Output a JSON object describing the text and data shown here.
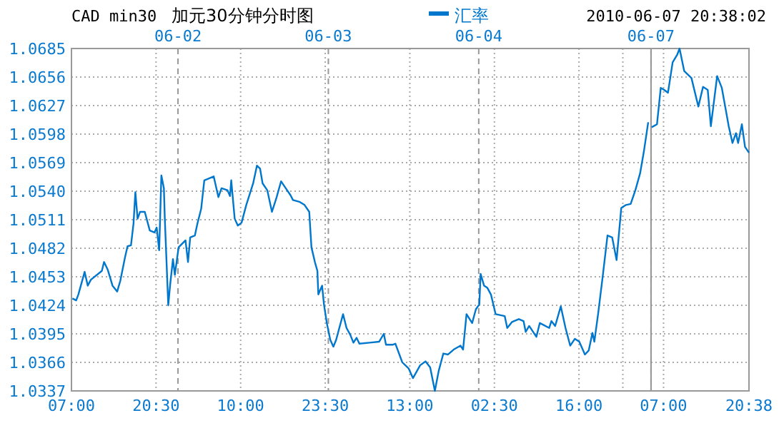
{
  "chart_data": [
    {
      "type": "line",
      "title": "加元30分钟分时图",
      "subtitle": "CAD min30",
      "annotations": [
        "2010-06-07 20:38:02"
      ],
      "legend": "top",
      "grid": true,
      "line_style": "solid",
      "marker": "none",
      "xlim": [
        "2010-06-01T07:00",
        "2010-06-05T03:30"
      ],
      "xticks": [
        {
          "value": "2010-06-01T07:00",
          "label": "07:00"
        },
        {
          "value": "2010-06-01T20:30",
          "label": "20:30"
        },
        {
          "value": "2010-06-02T10:00",
          "label": "10:00"
        },
        {
          "value": "2010-06-02T23:30",
          "label": "23:30"
        },
        {
          "value": "2010-06-03T13:00",
          "label": "13:00"
        },
        {
          "value": "2010-06-04T02:30",
          "label": "02:30"
        },
        {
          "value": "2010-06-04T16:00",
          "label": "16:00"
        },
        {
          "value": "2010-06-04T23:00",
          "label": null
        }
      ],
      "ylim": [
        1.0337,
        1.0685
      ],
      "yticks": [
        1.0337,
        1.0366,
        1.0395,
        1.0424,
        1.0453,
        1.0482,
        1.0511,
        {
          "value": 1.054,
          "label": "1.0540"
        },
        1.0569,
        1.0598,
        1.0627,
        1.0656,
        1.0685
      ],
      "ref_lines": [
        {
          "axis": "x",
          "value": "2010-06-02",
          "label": "06-02",
          "color": "#999999",
          "line_style": "dashed"
        },
        {
          "axis": "x",
          "value": "2010-06-03",
          "label": "06-03",
          "color": "#999999",
          "line_style": "dashed"
        },
        {
          "axis": "x",
          "value": "2010-06-04",
          "label": "06-04",
          "color": "#999999",
          "line_style": "dashed"
        }
      ],
      "series": [
        {
          "name": "汇率",
          "color": "#0077cc",
          "x": [
            "2010-06-01T07:09",
            "2010-06-01T07:45",
            "2010-06-01T08:06",
            "2010-06-01T09:06",
            "2010-06-01T09:36",
            "2010-06-01T10:06",
            "2010-06-01T11:51",
            "2010-06-01T12:12",
            "2010-06-01T12:48",
            "2010-06-01T13:33",
            "2010-06-01T14:18",
            "2010-06-01T14:48",
            "2010-06-01T15:33",
            "2010-06-01T15:57",
            "2010-06-01T16:30",
            "2010-06-01T16:54",
            "2010-06-01T17:12",
            "2010-06-01T17:33",
            "2010-06-01T17:57",
            "2010-06-01T18:42",
            "2010-06-01T19:30",
            "2010-06-01T20:15",
            "2010-06-01T20:36",
            "2010-06-01T21:00",
            "2010-06-01T21:21",
            "2010-06-01T21:45",
            "2010-06-01T21:54",
            "2010-06-01T22:27",
            "2010-06-01T22:45",
            "2010-06-01T23:12",
            "2010-06-01T23:30",
            "2010-06-02T00:06",
            "2010-06-02T01:12",
            "2010-06-02T01:36",
            "2010-06-02T01:57",
            "2010-06-02T02:42",
            "2010-06-02T03:06",
            "2010-06-02T03:42",
            "2010-06-02T04:12",
            "2010-06-02T05:42",
            "2010-06-02T06:27",
            "2010-06-02T06:57",
            "2010-06-02T07:54",
            "2010-06-02T08:18",
            "2010-06-02T08:30",
            "2010-06-02T09:03",
            "2010-06-02T09:33",
            "2010-06-02T10:09",
            "2010-06-02T10:54",
            "2010-06-02T12:00",
            "2010-06-02T12:36",
            "2010-06-02T13:06",
            "2010-06-02T13:30",
            "2010-06-02T14:15",
            "2010-06-02T15:00",
            "2010-06-02T15:45",
            "2010-06-02T16:27",
            "2010-06-02T17:12",
            "2010-06-02T17:57",
            "2010-06-02T18:21",
            "2010-06-02T19:27",
            "2010-06-02T20:12",
            "2010-06-02T20:57",
            "2010-06-02T21:18",
            "2010-06-02T21:51",
            "2010-06-02T22:15",
            "2010-06-02T22:24",
            "2010-06-02T23:00",
            "2010-06-02T23:18",
            "2010-06-02T23:45",
            "2010-06-03T00:18",
            "2010-06-03T00:48",
            "2010-06-03T01:15",
            "2010-06-03T01:45",
            "2010-06-03T02:21",
            "2010-06-03T02:54",
            "2010-06-03T03:30",
            "2010-06-03T04:00",
            "2010-06-03T04:30",
            "2010-06-03T04:57",
            "2010-06-03T06:36",
            "2010-06-03T08:06",
            "2010-06-03T08:51",
            "2010-06-03T09:12",
            "2010-06-03T10:18",
            "2010-06-03T10:42",
            "2010-06-03T11:48",
            "2010-06-03T12:48",
            "2010-06-03T13:30",
            "2010-06-03T14:39",
            "2010-06-03T15:30",
            "2010-06-03T16:15",
            "2010-06-03T17:00",
            "2010-06-03T17:36",
            "2010-06-03T18:21",
            "2010-06-03T19:06",
            "2010-06-03T20:00",
            "2010-06-03T21:06",
            "2010-06-03T21:30",
            "2010-06-03T22:03",
            "2010-06-03T22:57",
            "2010-06-03T23:33",
            "2010-06-04T00:06",
            "2010-06-04T00:18",
            "2010-06-04T00:51",
            "2010-06-04T01:21",
            "2010-06-04T01:57",
            "2010-06-04T02:42",
            "2010-06-04T04:09",
            "2010-06-04T04:33",
            "2010-06-04T05:18",
            "2010-06-04T06:24",
            "2010-06-04T07:09",
            "2010-06-04T07:30",
            "2010-06-04T08:03",
            "2010-06-04T09:12",
            "2010-06-04T09:45",
            "2010-06-04T11:15",
            "2010-06-04T11:36",
            "2010-06-04T12:12",
            "2010-06-04T13:06",
            "2010-06-04T13:51",
            "2010-06-04T14:36",
            "2010-06-04T15:21",
            "2010-06-04T16:03",
            "2010-06-04T16:57",
            "2010-06-04T17:33",
            "2010-06-04T18:09",
            "2010-06-04T18:27",
            "2010-06-04T19:03",
            "2010-06-04T19:48",
            "2010-06-04T20:33",
            "2010-06-04T21:18",
            "2010-06-04T22:00",
            "2010-06-04T22:45",
            "2010-06-04T23:30",
            "2010-06-05T00:15",
            "2010-06-05T01:00",
            "2010-06-05T01:45",
            "2010-06-05T02:21",
            "2010-06-05T03:03"
          ],
          "values": [
            1.0431,
            1.0429,
            1.0435,
            1.0458,
            1.0444,
            1.045,
            1.0459,
            1.0468,
            1.046,
            1.0444,
            1.0438,
            1.0449,
            1.0473,
            1.0484,
            1.0485,
            1.0507,
            1.0539,
            1.0512,
            1.0519,
            1.0519,
            1.05,
            1.0498,
            1.0503,
            1.048,
            1.0556,
            1.0543,
            1.0512,
            1.0424,
            1.0445,
            1.0471,
            1.0455,
            1.0483,
            1.049,
            1.0468,
            1.0493,
            1.0495,
            1.0507,
            1.0522,
            1.0551,
            1.0555,
            1.0534,
            1.0543,
            1.0541,
            1.0535,
            1.0551,
            1.0512,
            1.0505,
            1.0508,
            1.0526,
            1.0548,
            1.0566,
            1.0563,
            1.0548,
            1.0541,
            1.0519,
            1.0534,
            1.055,
            1.0543,
            1.0536,
            1.0531,
            1.0529,
            1.0526,
            1.0519,
            1.0483,
            1.0468,
            1.0459,
            1.0435,
            1.0444,
            1.0425,
            1.0406,
            1.0389,
            1.0382,
            1.0389,
            1.0401,
            1.0415,
            1.0401,
            1.0394,
            1.0386,
            1.0391,
            1.0385,
            1.0386,
            1.0387,
            1.0395,
            1.0384,
            1.0384,
            1.0385,
            1.0366,
            1.036,
            1.035,
            1.0363,
            1.0367,
            1.0361,
            1.0337,
            1.0357,
            1.0375,
            1.0374,
            1.0379,
            1.0383,
            1.0379,
            1.0415,
            1.0406,
            1.042,
            1.0425,
            1.0456,
            1.0444,
            1.0442,
            1.0435,
            1.0415,
            1.0413,
            1.0401,
            1.0407,
            1.041,
            1.0408,
            1.0397,
            1.0403,
            1.0392,
            1.0406,
            1.0401,
            1.0408,
            1.0403,
            1.0423,
            1.0401,
            1.0383,
            1.039,
            1.0387,
            1.0374,
            1.0378,
            1.0396,
            1.0387,
            1.0415,
            1.0454,
            1.0495,
            1.0493,
            1.047,
            1.0523,
            1.0526,
            1.0527,
            1.0541,
            1.0558,
            1.058,
            1.061
          ]
        }
      ]
    },
    {
      "type": "line",
      "grid": true,
      "line_style": "solid",
      "marker": "none",
      "tick_labels": "x",
      "xlim": [
        "2010-06-07T05:00",
        "2010-06-07T20:38"
      ],
      "xticks": [
        {
          "value": "2010-06-07T07:00",
          "label": "07:00"
        },
        {
          "value": "2010-06-07T20:38",
          "label": "20:38"
        }
      ],
      "ylim": [
        1.0337,
        1.0685
      ],
      "yticks": [
        1.0337,
        1.0366,
        1.0395,
        1.0424,
        1.0453,
        1.0482,
        1.0511,
        1.054,
        1.0569,
        1.0598,
        1.0627,
        1.0656,
        1.0685
      ],
      "ref_lines": [
        {
          "axis": "x",
          "value": "2010-06-07T05:00",
          "label": "06-07",
          "color": "#999999",
          "line_style": "dashed"
        }
      ],
      "series": [
        {
          "color": "#0077cc",
          "x": [
            "2010-06-07T05:06",
            "2010-06-07T05:57",
            "2010-06-07T06:33",
            "2010-06-07T07:06",
            "2010-06-07T07:42",
            "2010-06-07T08:27",
            "2010-06-07T09:12",
            "2010-06-07T09:33",
            "2010-06-07T10:18",
            "2010-06-07T11:27",
            "2010-06-07T12:33",
            "2010-06-07T13:18",
            "2010-06-07T14:03",
            "2010-06-07T14:33",
            "2010-06-07T15:33",
            "2010-06-07T16:18",
            "2010-06-07T17:24",
            "2010-06-07T18:00",
            "2010-06-07T18:33",
            "2010-06-07T18:54",
            "2010-06-07T19:30",
            "2010-06-07T20:00",
            "2010-06-07T20:38"
          ],
          "values": [
            1.0605,
            1.0608,
            1.0645,
            1.0643,
            1.064,
            1.0671,
            1.0679,
            1.0685,
            1.0662,
            1.0655,
            1.0626,
            1.0646,
            1.0643,
            1.0606,
            1.0657,
            1.0645,
            1.0606,
            1.0589,
            1.0599,
            1.0589,
            1.0608,
            1.0585,
            1.0579
          ]
        }
      ]
    }
  ]
}
